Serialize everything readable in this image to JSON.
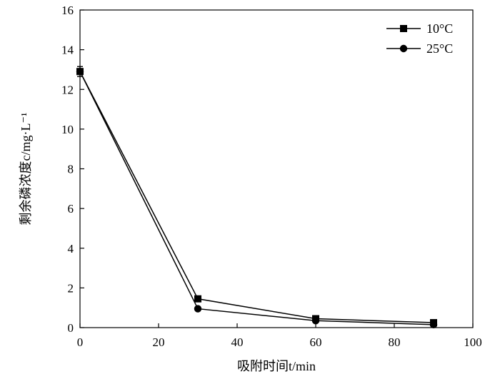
{
  "chart_data": {
    "type": "line",
    "xlabel": "吸附时间t/min",
    "ylabel": "剩余磷浓度c/mg·L⁻¹",
    "xlim": [
      0,
      100
    ],
    "ylim": [
      0,
      16
    ],
    "x_ticks": [
      0,
      20,
      40,
      60,
      80,
      100
    ],
    "y_ticks": [
      0,
      2,
      4,
      6,
      8,
      10,
      12,
      14,
      16
    ],
    "grid": false,
    "legend_position": "top-right",
    "series": [
      {
        "name": "10°C",
        "marker": "square",
        "color": "#000000",
        "x": [
          0,
          30,
          60,
          90
        ],
        "y": [
          12.9,
          1.45,
          0.45,
          0.25
        ],
        "error": [
          0.25,
          0,
          0,
          0
        ]
      },
      {
        "name": "25°C",
        "marker": "circle",
        "color": "#000000",
        "x": [
          0,
          30,
          60,
          90
        ],
        "y": [
          12.9,
          0.95,
          0.35,
          0.15
        ],
        "error": [
          0.25,
          0,
          0,
          0
        ]
      }
    ]
  }
}
